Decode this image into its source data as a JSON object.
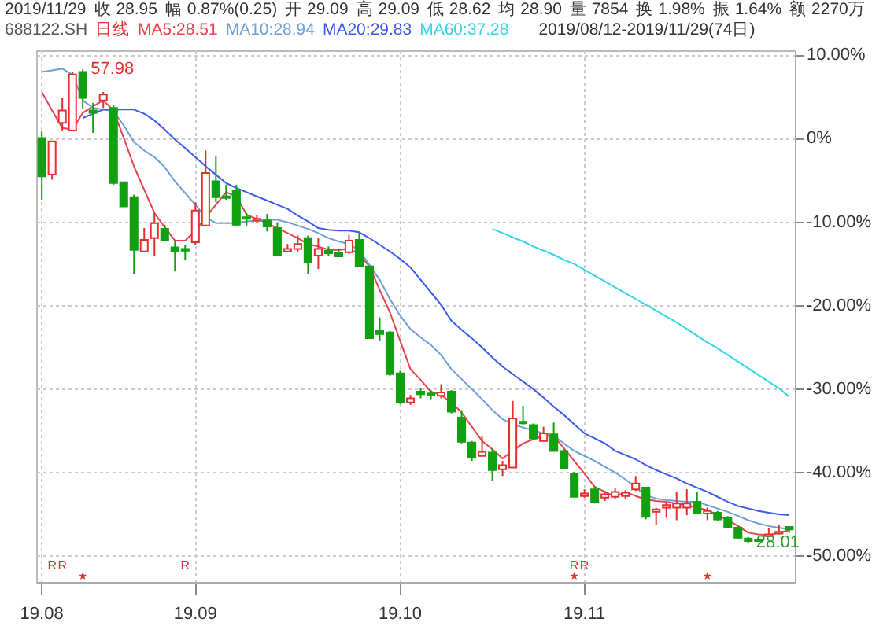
{
  "chart_data": {
    "type": "candlestick",
    "title": "688122.SH",
    "subtitle": "2019/08/12-2019/11/29(74日)",
    "annotations": [
      "日线",
      "2019/11/29",
      "收 28.95",
      "幅 0.87%(0.25)",
      "开 29.09",
      "高 29.09",
      "低 28.62",
      "均 28.90",
      "量 7854",
      "换 1.98%",
      "振 1.64%",
      "额 2270万",
      "57.98",
      "28.01",
      "R",
      "R",
      "R",
      "R",
      "R"
    ],
    "legend": "top left",
    "grid": true,
    "ylim": [
      -53.2,
      10.5
    ],
    "yticks": [
      {
        "value": 10,
        "label": "10.00%"
      },
      {
        "value": 0,
        "label": "0%"
      },
      {
        "value": -10,
        "label": "-10.00%"
      },
      {
        "value": -20,
        "label": "-20.00%"
      },
      {
        "value": -30,
        "label": "-30.00%"
      },
      {
        "value": -40,
        "label": "-40.00%"
      },
      {
        "value": -50,
        "label": "-50.00%"
      }
    ],
    "categories": [
      "19.08",
      null,
      null,
      null,
      null,
      null,
      null,
      null,
      null,
      null,
      null,
      null,
      null,
      null,
      null,
      "19.09",
      null,
      null,
      null,
      null,
      null,
      null,
      null,
      null,
      null,
      null,
      null,
      null,
      null,
      null,
      null,
      null,
      null,
      null,
      null,
      "19.10",
      null,
      null,
      null,
      null,
      null,
      null,
      null,
      null,
      null,
      null,
      null,
      null,
      null,
      null,
      null,
      null,
      null,
      "19.11",
      null,
      null,
      null,
      null,
      null,
      null,
      null,
      null,
      null,
      null,
      null,
      null,
      null,
      null,
      null,
      null,
      null,
      null,
      null,
      null
    ],
    "ohlc": [
      [
        0,
        0.9,
        -7.4,
        -4.6
      ],
      [
        -4.4,
        -0.4,
        -5.0,
        -0.4
      ],
      [
        1.8,
        4.8,
        0.9,
        3.3
      ],
      [
        0.9,
        7.9,
        0.9,
        7.6
      ],
      [
        7.9,
        8.2,
        3.5,
        4.8
      ],
      [
        3.3,
        4.2,
        0.6,
        3.0
      ],
      [
        4.5,
        5.5,
        3.6,
        5.2
      ],
      [
        3.6,
        4.0,
        -5.6,
        -5.4
      ],
      [
        -5.3,
        -5.3,
        -8.2,
        -8.2
      ],
      [
        -7.1,
        -6.8,
        -16.3,
        -13.4
      ],
      [
        -13.6,
        -10.8,
        -13.6,
        -12.2
      ],
      [
        -12.0,
        -9.0,
        -14.2,
        -10.2
      ],
      [
        -10.9,
        -10.4,
        -12.2,
        -12.2
      ],
      [
        -13.1,
        -12.3,
        -16.0,
        -13.6
      ],
      [
        -13.3,
        -12.8,
        -14.6,
        -13.5
      ],
      [
        -12.5,
        -7.7,
        -12.8,
        -8.7
      ],
      [
        -10.5,
        -1.5,
        -10.5,
        -4.2
      ],
      [
        -5.2,
        -2.2,
        -7.7,
        -7.1
      ],
      [
        -7.0,
        -5.6,
        -7.4,
        -7.2
      ],
      [
        -6.3,
        -5.6,
        -10.5,
        -10.4
      ],
      [
        -9.5,
        -9.0,
        -10.5,
        -9.7
      ],
      [
        -9.9,
        -9.2,
        -10.2,
        -9.7
      ],
      [
        -9.9,
        -9.1,
        -11.2,
        -10.6
      ],
      [
        -10.8,
        -10.2,
        -14.2,
        -14.1
      ],
      [
        -13.6,
        -12.7,
        -13.7,
        -13.3
      ],
      [
        -13.3,
        -11.7,
        -13.6,
        -12.7
      ],
      [
        -12.0,
        -11.7,
        -16.3,
        -14.9
      ],
      [
        -14.1,
        -12.0,
        -15.7,
        -13.3
      ],
      [
        -13.5,
        -13.0,
        -14.2,
        -13.8
      ],
      [
        -13.8,
        -13.3,
        -14.2,
        -14.2
      ],
      [
        -13.7,
        -11.6,
        -13.9,
        -12.3
      ],
      [
        -12.2,
        -11.3,
        -15.4,
        -15.4
      ],
      [
        -15.4,
        -15.4,
        -24.0,
        -24.0
      ],
      [
        -23.1,
        -21.5,
        -24.3,
        -23.5
      ],
      [
        -23.3,
        -23.1,
        -28.5,
        -28.3
      ],
      [
        -28.2,
        -27.9,
        -31.9,
        -31.7
      ],
      [
        -31.7,
        -30.8,
        -32.0,
        -31.2
      ],
      [
        -30.4,
        -30.0,
        -31.2,
        -30.7
      ],
      [
        -30.6,
        -30.2,
        -31.3,
        -30.8
      ],
      [
        -30.9,
        -29.5,
        -31.2,
        -30.5
      ],
      [
        -30.4,
        -30.2,
        -33.0,
        -32.8
      ],
      [
        -33.5,
        -32.6,
        -36.6,
        -36.4
      ],
      [
        -36.5,
        -36.3,
        -38.7,
        -38.3
      ],
      [
        -38.1,
        -35.7,
        -38.1,
        -37.6
      ],
      [
        -37.7,
        -37.2,
        -41.1,
        -39.8
      ],
      [
        -39.7,
        -38.7,
        -40.5,
        -39.2
      ],
      [
        -39.5,
        -31.5,
        -39.5,
        -33.6
      ],
      [
        -34.0,
        -32.1,
        -34.4,
        -34.2
      ],
      [
        -34.4,
        -34.2,
        -36.0,
        -36.0
      ],
      [
        -36.3,
        -34.6,
        -36.3,
        -35.4
      ],
      [
        -35.5,
        -34.1,
        -37.5,
        -37.5
      ],
      [
        -37.5,
        -37.3,
        -39.7,
        -39.6
      ],
      [
        -40.3,
        -40.0,
        -43.0,
        -43.0
      ],
      [
        -42.9,
        -42.1,
        -43.1,
        -42.6
      ],
      [
        -42.1,
        -41.8,
        -43.8,
        -43.6
      ],
      [
        -43.1,
        -42.3,
        -43.5,
        -42.7
      ],
      [
        -43.0,
        -42.0,
        -43.2,
        -42.4
      ],
      [
        -42.9,
        -42.2,
        -43.2,
        -42.5
      ],
      [
        -42.1,
        -40.5,
        -42.3,
        -41.4
      ],
      [
        -41.9,
        -41.8,
        -45.7,
        -45.4
      ],
      [
        -44.8,
        -44.3,
        -46.4,
        -44.5
      ],
      [
        -44.3,
        -43.6,
        -45.5,
        -44.0
      ],
      [
        -44.3,
        -42.4,
        -45.8,
        -43.8
      ],
      [
        -44.3,
        -42.1,
        -45.2,
        -43.8
      ],
      [
        -43.6,
        -42.4,
        -44.9,
        -44.9
      ],
      [
        -45.0,
        -44.3,
        -45.8,
        -44.7
      ],
      [
        -44.9,
        -44.7,
        -45.9,
        -45.7
      ],
      [
        -45.5,
        -45.3,
        -46.8,
        -46.6
      ],
      [
        -46.7,
        -46.5,
        -48.0,
        -47.9
      ],
      [
        -48.0,
        -47.8,
        -48.5,
        -48.3
      ],
      [
        -48.1,
        -47.9,
        -48.4,
        -48.3
      ],
      [
        -47.7,
        -46.7,
        -47.8,
        -47.5
      ],
      [
        -47.4,
        -46.4,
        -47.5,
        -47.2
      ],
      [
        -46.6,
        -46.6,
        -47.3,
        -46.9
      ]
    ],
    "colors": [
      "#12a012",
      "#e62e2e",
      "#e62e2e",
      "#e62e2e",
      "#12a012",
      "#12a012",
      "#e62e2e",
      "#12a012",
      "#12a012",
      "#12a012",
      "#e62e2e",
      "#e62e2e",
      "#12a012",
      "#12a012",
      "#12a012",
      "#e62e2e",
      "#e62e2e",
      "#12a012",
      "#12a012",
      "#12a012",
      "#12a012",
      "#e62e2e",
      "#12a012",
      "#12a012",
      "#e62e2e",
      "#e62e2e",
      "#12a012",
      "#e62e2e",
      "#12a012",
      "#12a012",
      "#e62e2e",
      "#12a012",
      "#12a012",
      "#12a012",
      "#12a012",
      "#12a012",
      "#e62e2e",
      "#12a012",
      "#12a012",
      "#e62e2e",
      "#12a012",
      "#12a012",
      "#12a012",
      "#e62e2e",
      "#12a012",
      "#e62e2e",
      "#e62e2e",
      "#12a012",
      "#12a012",
      "#e62e2e",
      "#12a012",
      "#12a012",
      "#12a012",
      "#e62e2e",
      "#12a012",
      "#e62e2e",
      "#e62e2e",
      "#e62e2e",
      "#e62e2e",
      "#12a012",
      "#e62e2e",
      "#e62e2e",
      "#e62e2e",
      "#e62e2e",
      "#12a012",
      "#e62e2e",
      "#12a012",
      "#12a012",
      "#12a012",
      "#12a012",
      "#12a012",
      "#e62e2e",
      "#e62e2e",
      "#12a012"
    ],
    "series": [
      {
        "name": "MA5:28.51",
        "type": "line",
        "color": "#e8424f",
        "values": [
          5.5,
          3.3,
          1.2,
          1.0,
          3.0,
          3.8,
          4.5,
          3.3,
          0,
          -3.4,
          -6.2,
          -9.0,
          -10.7,
          -12.3,
          -12.3,
          -11.1,
          -9.5,
          -8.0,
          -6.5,
          -7.0,
          -9.2,
          -9.7,
          -10.2,
          -10.8,
          -11.4,
          -12.0,
          -12.7,
          -13.0,
          -13.4,
          -13.4,
          -13.3,
          -13.9,
          -15.4,
          -18.2,
          -20.9,
          -24.3,
          -27.7,
          -29.0,
          -30.4,
          -30.8,
          -31.7,
          -32.9,
          -34.6,
          -36.3,
          -37.3,
          -38.4,
          -37.5,
          -36.6,
          -36.1,
          -35.7,
          -35.7,
          -37.2,
          -38.7,
          -40.2,
          -41.8,
          -42.4,
          -43.0,
          -42.4,
          -42.9,
          -43.3,
          -43.5,
          -43.6,
          -43.8,
          -44.0,
          -44.3,
          -44.6,
          -45.2,
          -45.8,
          -46.5,
          -47.3,
          -47.5,
          -47.6,
          -47.3,
          -47.0
        ]
      },
      {
        "name": "MA10:28.94",
        "type": "line",
        "color": "#6f9fd8",
        "values": [
          7.9,
          8.1,
          8.3,
          7.6,
          4.5,
          3.6,
          3.4,
          3.2,
          1.5,
          -0.5,
          -1.5,
          -2.3,
          -3.5,
          -5.2,
          -6.6,
          -8.0,
          -9.5,
          -10.2,
          -10.2,
          -10.2,
          -10.0,
          -9.9,
          -9.8,
          -9.8,
          -10.1,
          -10.5,
          -10.9,
          -11.4,
          -12.0,
          -12.4,
          -12.7,
          -13.5,
          -15.2,
          -17.0,
          -19.3,
          -21.3,
          -22.9,
          -23.9,
          -24.8,
          -26.0,
          -27.7,
          -28.9,
          -30.1,
          -31.3,
          -32.6,
          -33.7,
          -34.3,
          -34.7,
          -35.0,
          -35.4,
          -35.7,
          -36.6,
          -37.5,
          -38.1,
          -38.7,
          -39.4,
          -40.1,
          -40.9,
          -41.9,
          -42.8,
          -43.2,
          -43.4,
          -43.5,
          -43.6,
          -43.6,
          -44.0,
          -44.4,
          -44.8,
          -45.3,
          -45.8,
          -46.2,
          -46.5,
          -46.7,
          -46.9
        ]
      },
      {
        "name": "MA20:29.83",
        "type": "line",
        "color": "#3b5bf0",
        "values": [
          null,
          null,
          null,
          null,
          2.4,
          2.9,
          3.4,
          3.4,
          3.4,
          3.4,
          2.9,
          2.1,
          1.0,
          -0.2,
          -1.2,
          -2.3,
          -3.4,
          -4.4,
          -5.4,
          -6.0,
          -6.5,
          -7.0,
          -7.5,
          -8.0,
          -8.5,
          -9.3,
          -10.0,
          -10.8,
          -11.0,
          -11.1,
          -11.1,
          -11.3,
          -12.0,
          -12.8,
          -13.6,
          -14.5,
          -15.5,
          -17.0,
          -18.5,
          -20.0,
          -21.9,
          -23.0,
          -24.0,
          -25.1,
          -26.3,
          -27.4,
          -28.3,
          -29.2,
          -30.1,
          -31.1,
          -32.2,
          -33.2,
          -34.3,
          -35.4,
          -36.0,
          -36.6,
          -37.5,
          -38.0,
          -38.5,
          -39.2,
          -39.8,
          -40.3,
          -40.8,
          -41.4,
          -41.9,
          -42.4,
          -43.0,
          -43.6,
          -44.1,
          -44.4,
          -44.7,
          -44.9,
          -45.1,
          -45.2
        ]
      },
      {
        "name": "MA60:37.28",
        "type": "line",
        "color": "#33d6e6",
        "values": [
          null,
          null,
          null,
          null,
          null,
          null,
          null,
          null,
          null,
          null,
          null,
          null,
          null,
          null,
          null,
          null,
          null,
          null,
          null,
          null,
          null,
          null,
          null,
          null,
          null,
          null,
          null,
          null,
          null,
          null,
          null,
          null,
          null,
          null,
          null,
          null,
          null,
          null,
          null,
          null,
          null,
          null,
          null,
          null,
          -10.9,
          -11.4,
          -11.9,
          -12.4,
          -13.0,
          -13.5,
          -14.0,
          -14.6,
          -15.1,
          -15.8,
          -16.5,
          -17.2,
          -17.9,
          -18.6,
          -19.3,
          -20.0,
          -20.7,
          -21.4,
          -22.1,
          -22.9,
          -23.7,
          -24.5,
          -25.2,
          -26.0,
          -26.8,
          -27.6,
          -28.4,
          -29.2,
          -30.0,
          -31.0
        ]
      }
    ]
  }
}
